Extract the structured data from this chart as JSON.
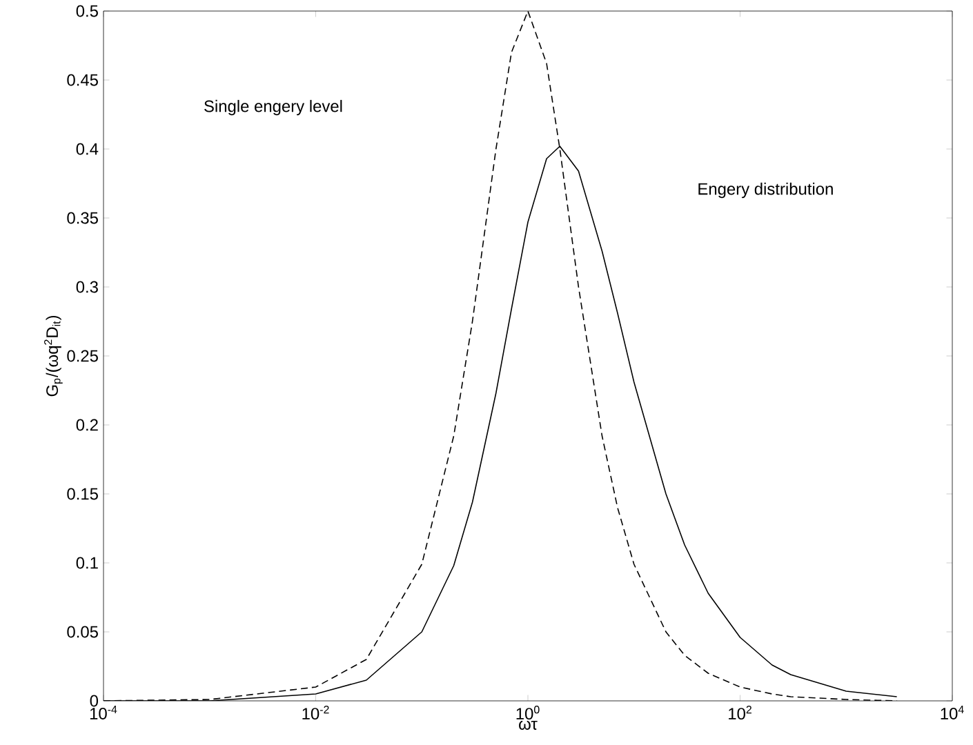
{
  "chart_data": {
    "type": "line",
    "xlabel": "ωτ",
    "ylabel": "G$_{p}$/(ωq$^{2}$D$_{it}$)",
    "log": "x",
    "grid": false,
    "marker": "none",
    "xlim": [
      0.0001,
      10000
    ],
    "ylim": [
      0,
      0.5
    ],
    "xticks": [
      {
        "value": 0.0001,
        "label": "10$^{-4}$"
      },
      {
        "value": 0.01,
        "label": "10$^{-2}$"
      },
      {
        "value": 1,
        "label": "10$^{0}$"
      },
      {
        "value": 100,
        "label": "10$^{2}$"
      },
      {
        "value": 10000,
        "label": "10$^{4}$"
      }
    ],
    "yticks": [
      0,
      0.05,
      0.1,
      0.15,
      0.2,
      0.25,
      0.3,
      0.35,
      0.4,
      0.45,
      0.5
    ],
    "x": [
      0.0001,
      0.001,
      0.01,
      0.03,
      0.1,
      0.2,
      0.3,
      0.5,
      0.7,
      1,
      1.5,
      2,
      3,
      5,
      7,
      10,
      20,
      30,
      50,
      100,
      200,
      300,
      1000,
      3000
    ],
    "series": [
      {
        "color": "#000000",
        "line_style": "dashed",
        "values": [
          0,
          0.001,
          0.01,
          0.03,
          0.099,
          0.192,
          0.275,
          0.4,
          0.47,
          0.5,
          0.462,
          0.4,
          0.3,
          0.192,
          0.14,
          0.099,
          0.05,
          0.033,
          0.02,
          0.01,
          0.005,
          0.003,
          0.001,
          0
        ]
      },
      {
        "color": "#000000",
        "line_style": "solid",
        "values": [
          0,
          0,
          0.005,
          0.015,
          0.05,
          0.098,
          0.144,
          0.223,
          0.284,
          0.347,
          0.393,
          0.402,
          0.384,
          0.326,
          0.281,
          0.231,
          0.15,
          0.113,
          0.078,
          0.046,
          0.026,
          0.019,
          0.007,
          0.003
        ]
      }
    ],
    "annotations": [
      "Single engery level",
      "Engery distribution"
    ]
  }
}
